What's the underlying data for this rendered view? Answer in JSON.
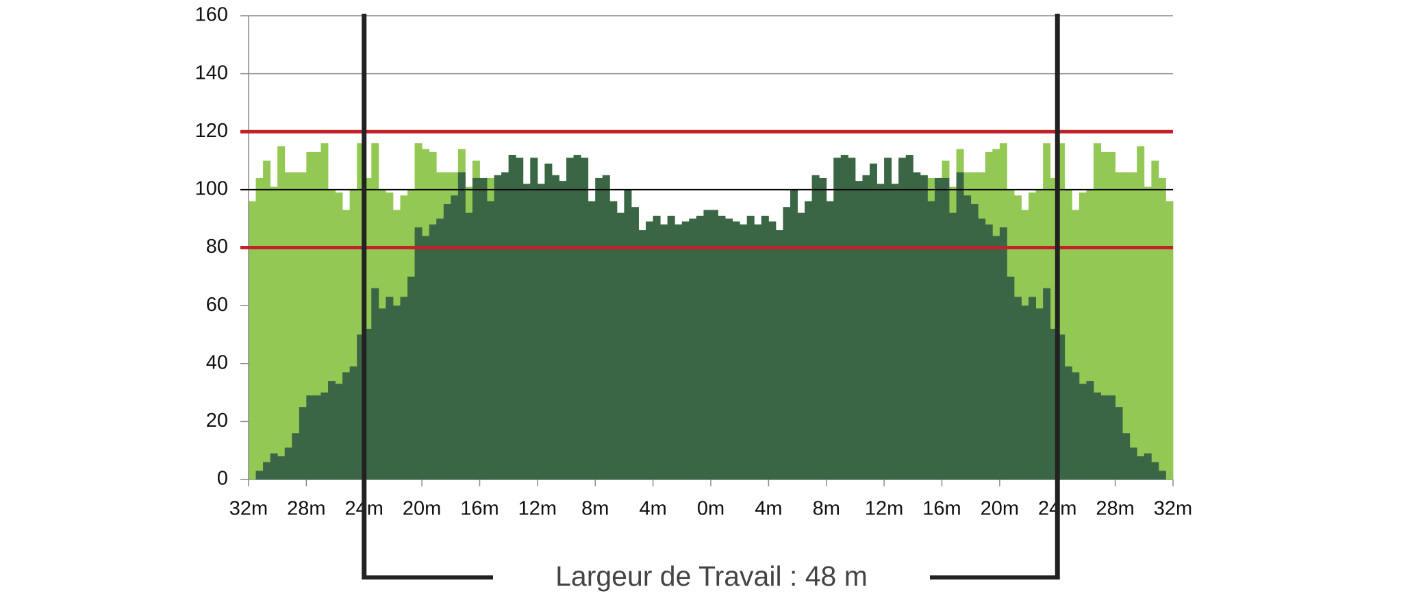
{
  "chart_data": {
    "type": "histogram",
    "bins": [
      -32,
      -31.5,
      -31,
      -30.5,
      -30,
      -29.5,
      -29,
      -28.5,
      -28,
      -27.5,
      -27,
      -26.5,
      -26,
      -25.5,
      -25,
      -24.5,
      -24,
      -23.5,
      -23,
      -22.5,
      -22,
      -21.5,
      -21,
      -20.5,
      -20,
      -19.5,
      -19,
      -18.5,
      -18,
      -17.5,
      -17,
      -16.5,
      -16,
      -15.5,
      -15,
      -14.5,
      -14,
      -13.5,
      -13,
      -12.5,
      -12,
      -11.5,
      -11,
      -10.5,
      -10,
      -9.5,
      -9,
      -8.5,
      -8,
      -7.5,
      -7,
      -6.5,
      -6,
      -5.5,
      -5,
      -4.5,
      -4,
      -3.5,
      -3,
      -2.5,
      -2,
      -1.5,
      -1,
      -0.5,
      0,
      0.5,
      1,
      1.5,
      2,
      2.5,
      3,
      3.5,
      4,
      4.5,
      5,
      5.5,
      6,
      6.5,
      7,
      7.5,
      8,
      8.5,
      9,
      9.5,
      10,
      10.5,
      11,
      11.5,
      12,
      12.5,
      13,
      13.5,
      14,
      14.5,
      15,
      15.5,
      16,
      16.5,
      17,
      17.5,
      18,
      18.5,
      19,
      19.5,
      20,
      20.5,
      21,
      21.5,
      22,
      22.5,
      23,
      23.5,
      24,
      24.5,
      25,
      25.5,
      26,
      26.5,
      27,
      27.5,
      28,
      28.5,
      29,
      29.5,
      30,
      30.5,
      31,
      31.5,
      32
    ],
    "series": [
      {
        "color": "#92c853",
        "values": [
          96,
          104,
          110,
          101,
          115,
          106,
          106,
          106,
          113,
          113,
          116,
          100,
          99,
          93,
          100,
          116,
          104,
          116,
          100,
          99,
          93,
          98,
          100,
          116,
          114,
          113,
          106,
          106,
          106,
          114,
          101,
          110,
          104,
          104,
          105,
          106,
          112,
          111,
          102,
          111,
          102,
          109,
          105,
          103,
          111,
          112,
          111,
          96,
          104,
          105,
          96,
          92,
          100,
          94,
          86,
          89,
          91,
          88,
          91,
          88,
          89,
          90,
          91,
          93,
          93,
          91,
          90,
          89,
          88,
          91,
          88,
          91,
          89,
          86,
          94,
          100,
          92,
          96,
          105,
          104,
          96,
          111,
          112,
          111,
          103,
          105,
          109,
          102,
          111,
          102,
          111,
          112,
          106,
          105,
          104,
          104,
          110,
          101,
          114,
          106,
          106,
          106,
          113,
          114,
          116,
          100,
          98,
          93,
          99,
          100,
          116,
          104,
          116,
          100,
          93,
          99,
          100,
          116,
          113,
          113,
          106,
          106,
          106,
          115,
          101,
          110,
          104,
          96
        ]
      },
      {
        "color": "#3b6645",
        "values": [
          0,
          3,
          6,
          9,
          8,
          11,
          16,
          25,
          29,
          29,
          30,
          34,
          33,
          37,
          39,
          50,
          52,
          66,
          59,
          63,
          60,
          63,
          70,
          87,
          84,
          88,
          90,
          95,
          98,
          106,
          92,
          104,
          104,
          96,
          105,
          106,
          112,
          111,
          102,
          111,
          102,
          109,
          105,
          103,
          111,
          112,
          111,
          96,
          104,
          105,
          96,
          92,
          100,
          94,
          86,
          89,
          91,
          88,
          91,
          88,
          89,
          90,
          91,
          93,
          93,
          91,
          90,
          89,
          88,
          91,
          88,
          91,
          89,
          86,
          94,
          100,
          92,
          96,
          105,
          104,
          96,
          111,
          112,
          111,
          103,
          105,
          109,
          102,
          111,
          102,
          111,
          112,
          106,
          105,
          96,
          104,
          104,
          92,
          106,
          98,
          95,
          90,
          88,
          84,
          87,
          70,
          63,
          60,
          63,
          59,
          66,
          52,
          50,
          39,
          37,
          33,
          34,
          30,
          29,
          29,
          25,
          16,
          11,
          8,
          9,
          6,
          3,
          0
        ]
      }
    ],
    "xlim": [
      -32,
      32
    ],
    "xticks": [
      {
        "value": -32,
        "label": "32m"
      },
      {
        "value": -28,
        "label": "28m"
      },
      {
        "value": -24,
        "label": "24m"
      },
      {
        "value": -20,
        "label": "20m"
      },
      {
        "value": -16,
        "label": "16m"
      },
      {
        "value": -12,
        "label": "12m"
      },
      {
        "value": -8,
        "label": "8m"
      },
      {
        "value": -4,
        "label": "4m"
      },
      {
        "value": 0,
        "label": "0m"
      },
      {
        "value": 4,
        "label": "4m"
      },
      {
        "value": 8,
        "label": "8m"
      },
      {
        "value": 12,
        "label": "12m"
      },
      {
        "value": 16,
        "label": "16m"
      },
      {
        "value": 20,
        "label": "20m"
      },
      {
        "value": 24,
        "label": "24m"
      },
      {
        "value": 28,
        "label": "28m"
      },
      {
        "value": 32,
        "label": "32m"
      }
    ],
    "ylim": [
      0,
      160
    ],
    "yticks": [
      0,
      20,
      40,
      60,
      80,
      100,
      120,
      140,
      160
    ],
    "grid": true,
    "hlines": [
      {
        "value": 80,
        "color": "#c0232c"
      },
      {
        "value": 120,
        "color": "#c0232c"
      },
      {
        "value": 100,
        "color": "#000000"
      }
    ],
    "vlines": [
      -24,
      24
    ],
    "annotation": "Largeur de Travail : 48 m"
  }
}
